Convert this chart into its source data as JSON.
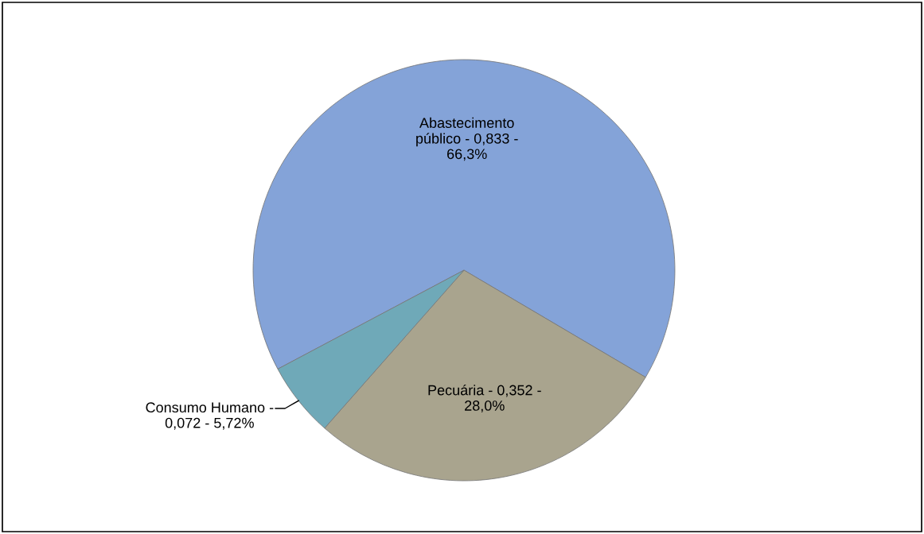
{
  "chart_data": {
    "type": "pie",
    "categories": [
      "Abastecimento público -",
      "Pecuária -",
      "Consumo Humano -"
    ],
    "values": [
      0.833,
      0.352,
      0.072
    ],
    "value_labels": [
      "0,833 - 66,3%",
      "0,352 - 28,0%",
      "0,072 - 5,72%"
    ],
    "colors": [
      "#84a3d8",
      "#a9a48e",
      "#6fa9b8"
    ]
  }
}
